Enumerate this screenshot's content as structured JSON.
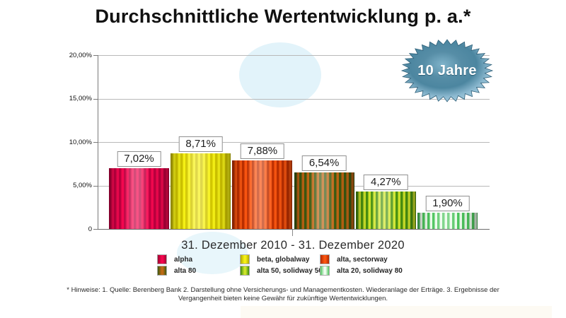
{
  "title": "Durchschnittliche Wertentwicklung p. a.*",
  "badge": {
    "label": "10 Jahre"
  },
  "x_axis_label": "31. Dezember 2010 - 31. Dezember 2020",
  "y_axis": {
    "ticks": [
      "20,00%",
      "15,00%",
      "10,00%",
      "5,00%",
      "0"
    ]
  },
  "chart_data": {
    "type": "bar",
    "title": "Durchschnittliche Wertentwicklung p. a.*",
    "period_label": "31. Dezember 2010 - 31. Dezember 2020",
    "categories": [
      "alpha",
      "beta, globalway",
      "alta, sectorway",
      "alta 80",
      "alta 50, solidway 50",
      "alta 20, solidway 80"
    ],
    "values": [
      7.02,
      8.71,
      7.88,
      6.54,
      4.27,
      1.9
    ],
    "value_labels": [
      "7,02%",
      "8,71%",
      "7,88%",
      "6,54%",
      "4,27%",
      "1,90%"
    ],
    "ylabel": "",
    "xlabel": "31. Dezember 2010 - 31. Dezember 2020",
    "ylim": [
      0,
      20
    ],
    "y_tick_values": [
      20,
      15,
      10,
      5,
      0
    ],
    "grid": true,
    "legend_position": "bottom",
    "bar_main_colors": [
      "#f5074f",
      "#f6f115",
      "#fa5510",
      "#bd6413",
      "#4a9210",
      "#4cc45c"
    ]
  },
  "legend": {
    "items": [
      {
        "label": "alpha",
        "color": "#f5074f"
      },
      {
        "label": "beta, globalway",
        "color": "#f6f115"
      },
      {
        "label": "alta, sectorway",
        "color": "#fa5510"
      },
      {
        "label": "alta 80",
        "color": "#bd6413"
      },
      {
        "label": "alta 50, solidway 50",
        "color": "#4a9210"
      },
      {
        "label": "alta 20, solidway 80",
        "color": "#4cc45c"
      }
    ]
  },
  "footnotes": {
    "line1": "* Hinweise: 1. Quelle: Berenberg Bank  2. Darstellung ohne Versicherungs- und Managementkosten. Wiederanlage der Erträge.  3. Ergebnisse der",
    "line2": "Vergangenheit bieten keine Gewähr für zukünftige Wertentwicklungen."
  },
  "colors": {
    "badge_center": "#4c86a0",
    "badge_rim": "#a8cfe0",
    "badge_outline": "#2f6079",
    "gridline": "#b9b9b9",
    "watermark_blue": "#cbeaf6"
  }
}
